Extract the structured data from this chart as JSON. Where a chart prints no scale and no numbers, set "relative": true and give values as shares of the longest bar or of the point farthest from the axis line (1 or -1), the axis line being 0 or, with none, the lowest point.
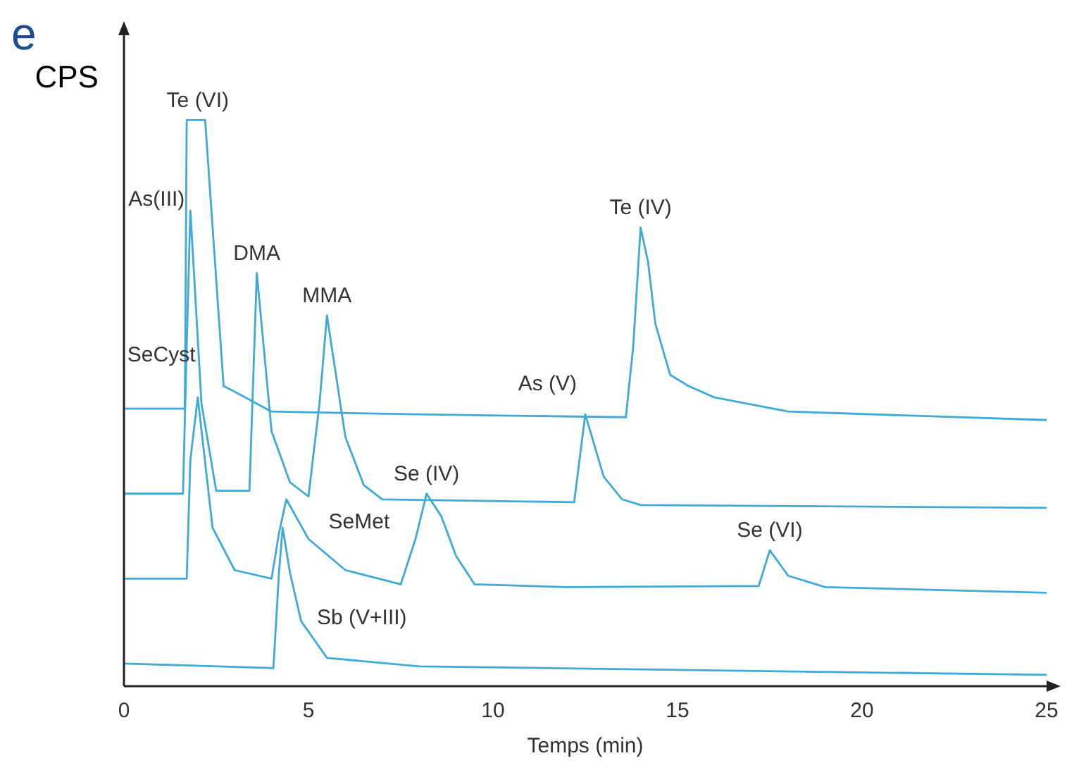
{
  "chart_data": {
    "type": "line",
    "relative": true,
    "xlabel": "Temps (min)",
    "ylabel": "CPS",
    "xlim": [
      0,
      25
    ],
    "xticks": [
      0,
      5,
      10,
      15,
      20,
      25
    ],
    "grid": false,
    "legend": false,
    "marker": "none",
    "line_style": "solid",
    "annotations": [
      "e",
      {
        "text": "Te (VI)",
        "x": 2,
        "y": 1
      },
      {
        "text": "As(III)",
        "x": 1.8,
        "y": 0.84
      },
      {
        "text": "DMA",
        "x": 3.6,
        "y": 0.73
      },
      {
        "text": "MMA",
        "x": 5.5,
        "y": 0.655
      },
      {
        "text": "Te (IV)",
        "x": 14,
        "y": 0.81
      },
      {
        "text": "As (V)",
        "x": 12.5,
        "y": 0.48
      },
      {
        "text": "SeCyst",
        "x": 2,
        "y": 0.51
      },
      {
        "text": "Se (IV)",
        "x": 8.2,
        "y": 0.34
      },
      {
        "text": "SeMet",
        "x": 4.4,
        "y": 0.33
      },
      {
        "text": "Se (VI)",
        "x": 17.5,
        "y": 0.24
      },
      {
        "text": "Sb (V+III)",
        "x": 5,
        "y": 0.096
      }
    ],
    "series": [
      {
        "color": "#3fa9d8",
        "x": [
          0,
          1.65,
          1.7,
          2.2,
          2.7,
          3,
          4,
          8,
          13.6,
          13.8,
          14,
          14.2,
          14.4,
          14.8,
          15.3,
          16,
          18,
          25
        ],
        "values": [
          0.49,
          0.49,
          1,
          1,
          0.53,
          0.52,
          0.485,
          0.48,
          0.475,
          0.6,
          0.81,
          0.75,
          0.64,
          0.55,
          0.53,
          0.51,
          0.485,
          0.47
        ]
      },
      {
        "color": "#3fa9d8",
        "x": [
          0,
          1.6,
          1.7,
          1.8,
          2.1,
          2.5,
          3.4,
          3.6,
          4,
          4.5,
          5,
          5.3,
          5.5,
          6,
          6.5,
          7,
          12.2,
          12.5,
          13,
          13.5,
          14,
          25
        ],
        "values": [
          0.34,
          0.34,
          0.6,
          0.84,
          0.5,
          0.345,
          0.345,
          0.73,
          0.45,
          0.36,
          0.335,
          0.5,
          0.655,
          0.44,
          0.355,
          0.33,
          0.325,
          0.48,
          0.37,
          0.33,
          0.32,
          0.315
        ]
      },
      {
        "color": "#3fa9d8",
        "x": [
          0,
          1.7,
          1.8,
          2,
          2.4,
          3,
          4,
          4.2,
          4.4,
          5,
          6,
          7.5,
          7.9,
          8.2,
          8.6,
          9,
          9.5,
          12,
          17.2,
          17.5,
          18,
          19,
          25
        ],
        "values": [
          0.19,
          0.19,
          0.4,
          0.51,
          0.28,
          0.205,
          0.19,
          0.27,
          0.33,
          0.26,
          0.205,
          0.18,
          0.26,
          0.34,
          0.3,
          0.23,
          0.18,
          0.175,
          0.177,
          0.24,
          0.195,
          0.175,
          0.165
        ]
      },
      {
        "color": "#3fa9d8",
        "x": [
          0,
          4.05,
          4.2,
          4.3,
          4.5,
          4.8,
          5.5,
          8,
          25
        ],
        "values": [
          0.04,
          0.032,
          0.2,
          0.28,
          0.2,
          0.115,
          0.05,
          0.035,
          0.02
        ]
      }
    ]
  }
}
